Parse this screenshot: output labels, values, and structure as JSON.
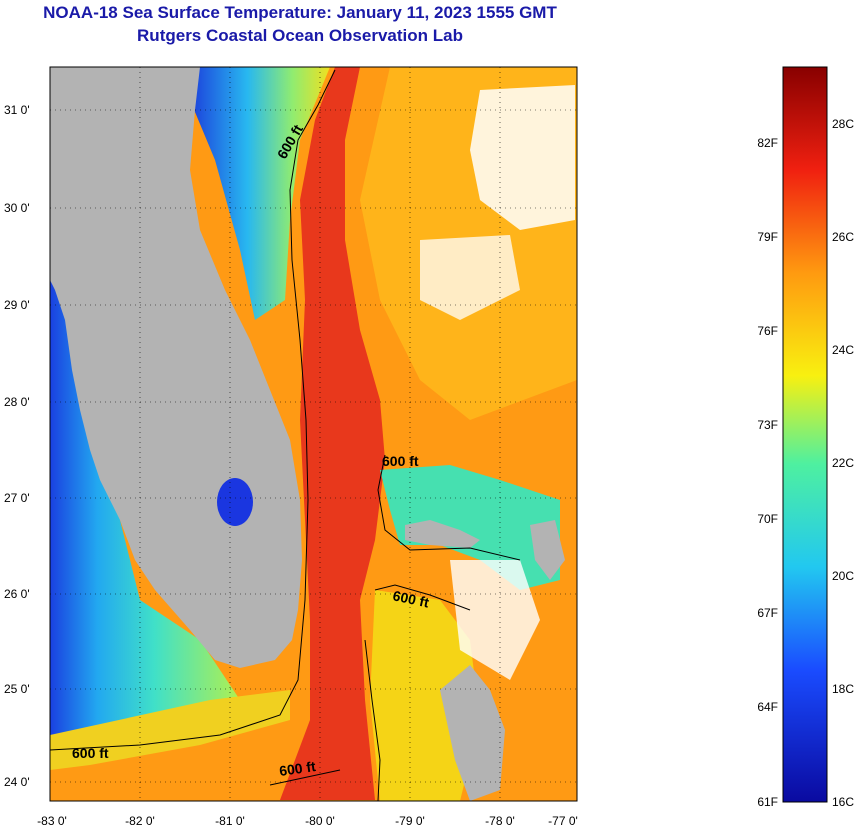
{
  "header": {
    "title": "NOAA-18 Sea Surface Temperature:  January 11, 2023 1555 GMT",
    "subtitle": "Rutgers Coastal Ocean Observation Lab"
  },
  "map": {
    "lat_ticks": [
      "31 0'",
      "30 0'",
      "29 0'",
      "28 0'",
      "27 0'",
      "26 0'",
      "25 0'",
      "24 0'"
    ],
    "lon_ticks": [
      "-83 0'",
      "-82 0'",
      "-81 0'",
      "-80 0'",
      "-79 0'",
      "-78 0'",
      "-77 0'"
    ],
    "contour_labels": [
      "600 ft",
      "600 ft",
      "600 ft",
      "600 ft",
      "600 ft"
    ],
    "colors": {
      "land": "#b3b3b3",
      "gulf_stream": "#e8381c",
      "warm": "#ff9a14",
      "cool": "#f5d416",
      "shelf": "#46e0b0",
      "cold": "#1a36e0"
    }
  },
  "colorbar": {
    "fahrenheit": [
      "82F",
      "79F",
      "76F",
      "73F",
      "70F",
      "67F",
      "64F",
      "61F"
    ],
    "celsius": [
      "28C",
      "26C",
      "24C",
      "22C",
      "20C",
      "18C",
      "16C"
    ]
  }
}
